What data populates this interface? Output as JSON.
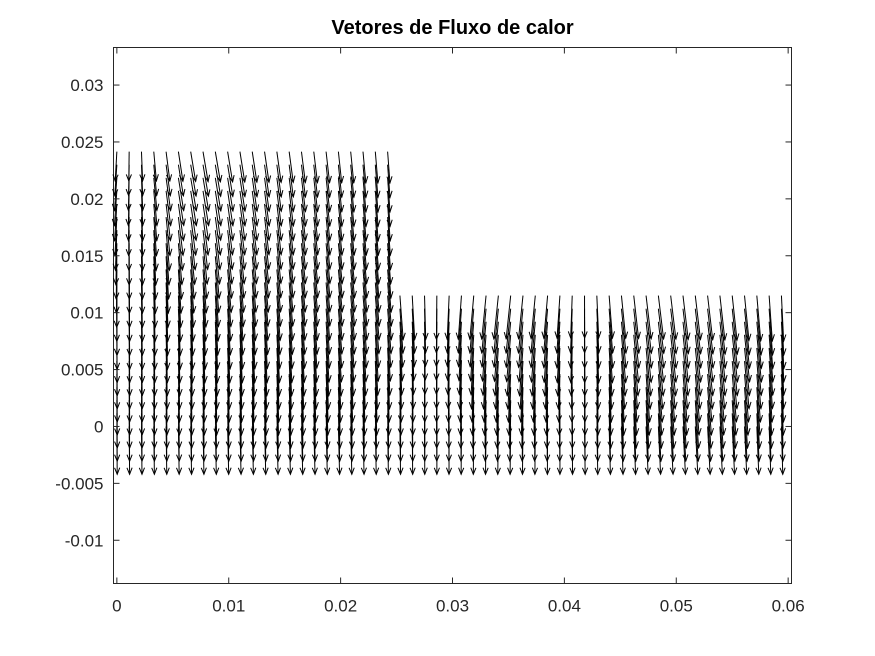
{
  "chart_data": {
    "type": "quiver",
    "title": "Vetores de Fluxo de calor",
    "xlabel": "",
    "ylabel": "",
    "xlim": [
      -0.0003,
      0.0603
    ],
    "ylim": [
      -0.0138,
      0.0333
    ],
    "x_ticks": [
      0,
      0.01,
      0.02,
      0.03,
      0.04,
      0.05,
      0.06
    ],
    "x_tick_labels": [
      "0",
      "0.01",
      "0.02",
      "0.03",
      "0.04",
      "0.05",
      "0.06"
    ],
    "y_ticks": [
      -0.01,
      -0.005,
      0,
      0.005,
      0.01,
      0.015,
      0.02,
      0.025,
      0.03
    ],
    "y_tick_labels": [
      "-0.01",
      "-0.005",
      "0",
      "0.005",
      "0.01",
      "0.015",
      "0.02",
      "0.025",
      "0.03"
    ],
    "grid": false,
    "arrow_color": "#000000",
    "domain": {
      "x_range": [
        0,
        0.06
      ],
      "y_range": [
        0,
        0.025
      ],
      "step_at_x": 0.025,
      "step_height": 0.0125
    },
    "field_spacing": {
      "dx": 0.0011,
      "dy": 0.00115
    },
    "field_sources": [
      {
        "x": 0.002,
        "y": 0.0205
      },
      {
        "x": 0.042,
        "y": 0.0095
      }
    ],
    "field_sinks": [
      {
        "x": 0.0285,
        "y": 0.0115
      },
      {
        "x": 0.06,
        "y": 0.008
      }
    ],
    "downward_bias": 1.0,
    "max_arrow_dy": 0.0042
  }
}
